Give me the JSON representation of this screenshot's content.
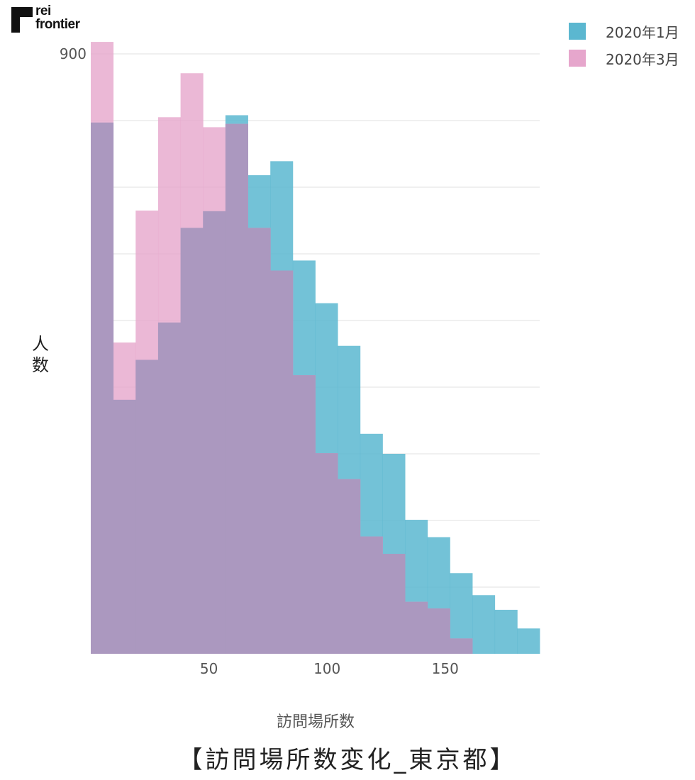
{
  "logo": {
    "line1": "rei",
    "line2": "frontier"
  },
  "caption": "【訪問場所数変化_東京都】",
  "chart_data": {
    "type": "histogram",
    "xlabel": "訪問場所数",
    "ylabel": "人数",
    "x_ticks": [
      50,
      100,
      150
    ],
    "y_ticks": [
      900
    ],
    "xlim": [
      0,
      190
    ],
    "ylim": [
      0,
      900
    ],
    "grid": true,
    "legend": "top-right",
    "bin_width": 9.5,
    "series": [
      {
        "name": "2020年1月",
        "color": "#5bb7d0",
        "bins": [
          {
            "x0": 0.0,
            "x1": 9.5,
            "value": 797
          },
          {
            "x0": 9.5,
            "x1": 19.0,
            "value": 381
          },
          {
            "x0": 19.0,
            "x1": 28.5,
            "value": 441
          },
          {
            "x0": 28.5,
            "x1": 38.0,
            "value": 497
          },
          {
            "x0": 38.0,
            "x1": 47.5,
            "value": 639
          },
          {
            "x0": 47.5,
            "x1": 57.0,
            "value": 664
          },
          {
            "x0": 57.0,
            "x1": 66.5,
            "value": 808
          },
          {
            "x0": 66.5,
            "x1": 76.0,
            "value": 718
          },
          {
            "x0": 76.0,
            "x1": 85.5,
            "value": 739
          },
          {
            "x0": 85.5,
            "x1": 95.0,
            "value": 590
          },
          {
            "x0": 95.0,
            "x1": 104.5,
            "value": 526
          },
          {
            "x0": 104.5,
            "x1": 114.0,
            "value": 462
          },
          {
            "x0": 114.0,
            "x1": 123.5,
            "value": 330
          },
          {
            "x0": 123.5,
            "x1": 133.0,
            "value": 300
          },
          {
            "x0": 133.0,
            "x1": 142.5,
            "value": 201
          },
          {
            "x0": 142.5,
            "x1": 152.0,
            "value": 175
          },
          {
            "x0": 152.0,
            "x1": 161.5,
            "value": 121
          },
          {
            "x0": 161.5,
            "x1": 171.0,
            "value": 88
          },
          {
            "x0": 171.0,
            "x1": 180.5,
            "value": 66
          },
          {
            "x0": 180.5,
            "x1": 190.0,
            "value": 38
          }
        ]
      },
      {
        "name": "2020年3月",
        "color": "#e6a6cc",
        "bins": [
          {
            "x0": 0.0,
            "x1": 9.5,
            "value": 918
          },
          {
            "x0": 9.5,
            "x1": 19.0,
            "value": 467
          },
          {
            "x0": 19.0,
            "x1": 28.5,
            "value": 665
          },
          {
            "x0": 28.5,
            "x1": 38.0,
            "value": 805
          },
          {
            "x0": 38.0,
            "x1": 47.5,
            "value": 871
          },
          {
            "x0": 47.5,
            "x1": 57.0,
            "value": 790
          },
          {
            "x0": 57.0,
            "x1": 66.5,
            "value": 795
          },
          {
            "x0": 66.5,
            "x1": 76.0,
            "value": 639
          },
          {
            "x0": 76.0,
            "x1": 85.5,
            "value": 575
          },
          {
            "x0": 85.5,
            "x1": 95.0,
            "value": 418
          },
          {
            "x0": 95.0,
            "x1": 104.5,
            "value": 301
          },
          {
            "x0": 104.5,
            "x1": 114.0,
            "value": 262
          },
          {
            "x0": 114.0,
            "x1": 123.5,
            "value": 176
          },
          {
            "x0": 123.5,
            "x1": 133.0,
            "value": 150
          },
          {
            "x0": 133.0,
            "x1": 142.5,
            "value": 78
          },
          {
            "x0": 142.5,
            "x1": 152.0,
            "value": 68
          },
          {
            "x0": 152.0,
            "x1": 161.5,
            "value": 23
          }
        ]
      }
    ]
  }
}
